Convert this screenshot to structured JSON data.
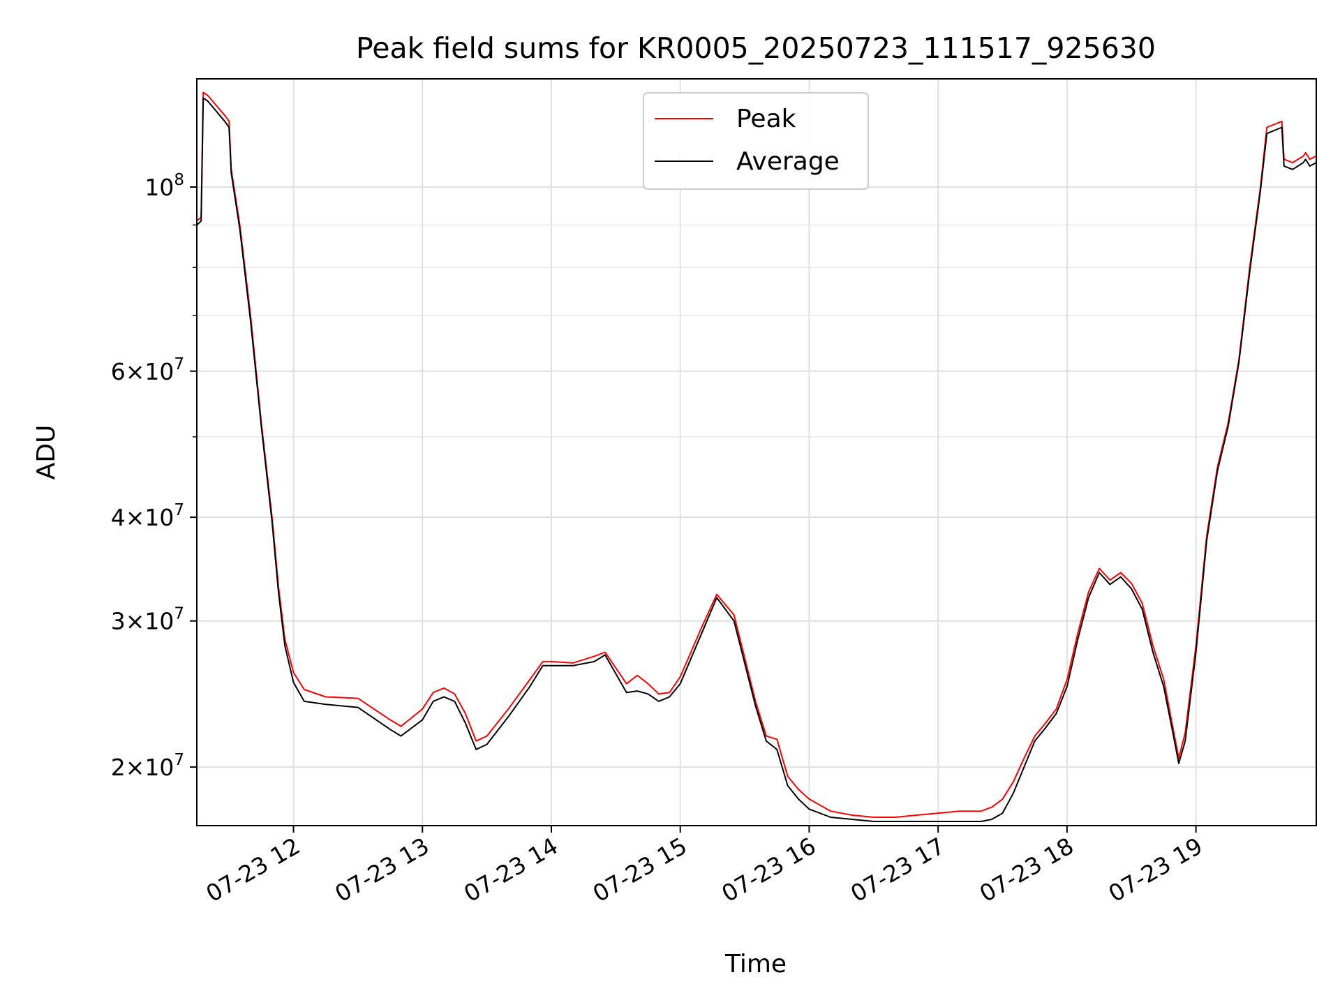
{
  "chart_data": {
    "type": "line",
    "title": "Peak field sums for KR0005_20250723_111517_925630",
    "xlabel": "Time",
    "ylabel": "ADU",
    "yscale": "log",
    "grid": true,
    "legend_position": "top-center",
    "xlim": [
      "2025-07-23 11:15",
      "2025-07-23 19:56"
    ],
    "ylim": [
      17000000,
      135000000
    ],
    "x_ticks": [
      {
        "value": "2025-07-23 12:00",
        "label": "07-23 12"
      },
      {
        "value": "2025-07-23 13:00",
        "label": "07-23 13"
      },
      {
        "value": "2025-07-23 14:00",
        "label": "07-23 14"
      },
      {
        "value": "2025-07-23 15:00",
        "label": "07-23 15"
      },
      {
        "value": "2025-07-23 16:00",
        "label": "07-23 16"
      },
      {
        "value": "2025-07-23 17:00",
        "label": "07-23 17"
      },
      {
        "value": "2025-07-23 18:00",
        "label": "07-23 18"
      },
      {
        "value": "2025-07-23 19:00",
        "label": "07-23 19"
      }
    ],
    "y_major_ticks": [
      {
        "value": 20000000,
        "mantissa": "2",
        "exponent": "7"
      },
      {
        "value": 30000000,
        "mantissa": "3",
        "exponent": "7"
      },
      {
        "value": 40000000,
        "mantissa": "4",
        "exponent": "7"
      },
      {
        "value": 60000000,
        "mantissa": "6",
        "exponent": "7"
      },
      {
        "value": 100000000,
        "mantissa": "",
        "exponent": "8"
      }
    ],
    "y_minor_ticks": [
      50000000,
      70000000,
      80000000,
      90000000
    ],
    "series": [
      {
        "name": "Peak",
        "color": "#ff0000",
        "x": [
          "2025-07-23 11:15",
          "2025-07-23 11:17",
          "2025-07-23 11:18",
          "2025-07-23 11:20",
          "2025-07-23 11:28",
          "2025-07-23 11:30",
          "2025-07-23 11:31",
          "2025-07-23 11:35",
          "2025-07-23 11:40",
          "2025-07-23 11:45",
          "2025-07-23 11:50",
          "2025-07-23 11:53",
          "2025-07-23 11:56",
          "2025-07-23 12:00",
          "2025-07-23 12:05",
          "2025-07-23 12:15",
          "2025-07-23 12:30",
          "2025-07-23 12:45",
          "2025-07-23 12:50",
          "2025-07-23 13:00",
          "2025-07-23 13:05",
          "2025-07-23 13:10",
          "2025-07-23 13:15",
          "2025-07-23 13:20",
          "2025-07-23 13:25",
          "2025-07-23 13:30",
          "2025-07-23 13:40",
          "2025-07-23 13:50",
          "2025-07-23 13:56",
          "2025-07-23 14:00",
          "2025-07-23 14:10",
          "2025-07-23 14:20",
          "2025-07-23 14:25",
          "2025-07-23 14:35",
          "2025-07-23 14:40",
          "2025-07-23 14:45",
          "2025-07-23 14:50",
          "2025-07-23 14:55",
          "2025-07-23 15:00",
          "2025-07-23 15:10",
          "2025-07-23 15:17",
          "2025-07-23 15:25",
          "2025-07-23 15:35",
          "2025-07-23 15:40",
          "2025-07-23 15:45",
          "2025-07-23 15:50",
          "2025-07-23 15:55",
          "2025-07-23 16:00",
          "2025-07-23 16:10",
          "2025-07-23 16:20",
          "2025-07-23 16:30",
          "2025-07-23 16:40",
          "2025-07-23 16:50",
          "2025-07-23 17:00",
          "2025-07-23 17:10",
          "2025-07-23 17:20",
          "2025-07-23 17:25",
          "2025-07-23 17:30",
          "2025-07-23 17:35",
          "2025-07-23 17:40",
          "2025-07-23 17:45",
          "2025-07-23 17:50",
          "2025-07-23 17:55",
          "2025-07-23 18:00",
          "2025-07-23 18:05",
          "2025-07-23 18:10",
          "2025-07-23 18:15",
          "2025-07-23 18:20",
          "2025-07-23 18:25",
          "2025-07-23 18:30",
          "2025-07-23 18:35",
          "2025-07-23 18:40",
          "2025-07-23 18:45",
          "2025-07-23 18:50",
          "2025-07-23 18:52",
          "2025-07-23 18:55",
          "2025-07-23 19:00",
          "2025-07-23 19:05",
          "2025-07-23 19:10",
          "2025-07-23 19:15",
          "2025-07-23 19:20",
          "2025-07-23 19:25",
          "2025-07-23 19:30",
          "2025-07-23 19:33",
          "2025-07-23 19:40",
          "2025-07-23 19:41",
          "2025-07-23 19:45",
          "2025-07-23 19:50",
          "2025-07-23 19:51",
          "2025-07-23 19:53",
          "2025-07-23 19:56"
        ],
        "values": [
          91000000,
          92000000,
          130000000,
          129000000,
          122000000,
          120000000,
          105000000,
          90000000,
          70000000,
          52000000,
          40000000,
          33000000,
          28500000,
          26000000,
          24800000,
          24300000,
          24200000,
          22800000,
          22400000,
          23500000,
          24600000,
          24900000,
          24500000,
          23200000,
          21500000,
          21800000,
          23500000,
          25500000,
          26800000,
          26800000,
          26700000,
          27200000,
          27500000,
          25200000,
          25800000,
          25200000,
          24500000,
          24600000,
          25700000,
          29500000,
          32300000,
          30500000,
          24000000,
          21800000,
          21600000,
          19500000,
          18800000,
          18300000,
          17700000,
          17500000,
          17400000,
          17400000,
          17500000,
          17600000,
          17700000,
          17700000,
          17900000,
          18300000,
          19200000,
          20500000,
          21800000,
          22600000,
          23500000,
          25500000,
          29000000,
          32500000,
          34700000,
          33600000,
          34300000,
          33300000,
          31500000,
          28000000,
          25500000,
          21800000,
          20500000,
          22000000,
          28000000,
          38000000,
          46000000,
          52000000,
          62000000,
          80000000,
          100000000,
          118000000,
          120000000,
          108000000,
          107000000,
          109000000,
          110000000,
          108000000,
          109000000
        ]
      },
      {
        "name": "Average",
        "color": "#000000",
        "x": [
          "2025-07-23 11:15",
          "2025-07-23 11:17",
          "2025-07-23 11:18",
          "2025-07-23 11:20",
          "2025-07-23 11:28",
          "2025-07-23 11:30",
          "2025-07-23 11:31",
          "2025-07-23 11:35",
          "2025-07-23 11:40",
          "2025-07-23 11:45",
          "2025-07-23 11:50",
          "2025-07-23 11:53",
          "2025-07-23 11:56",
          "2025-07-23 12:00",
          "2025-07-23 12:05",
          "2025-07-23 12:15",
          "2025-07-23 12:30",
          "2025-07-23 12:45",
          "2025-07-23 12:50",
          "2025-07-23 13:00",
          "2025-07-23 13:05",
          "2025-07-23 13:10",
          "2025-07-23 13:15",
          "2025-07-23 13:20",
          "2025-07-23 13:25",
          "2025-07-23 13:30",
          "2025-07-23 13:40",
          "2025-07-23 13:50",
          "2025-07-23 13:56",
          "2025-07-23 14:00",
          "2025-07-23 14:10",
          "2025-07-23 14:20",
          "2025-07-23 14:25",
          "2025-07-23 14:35",
          "2025-07-23 14:40",
          "2025-07-23 14:45",
          "2025-07-23 14:50",
          "2025-07-23 14:55",
          "2025-07-23 15:00",
          "2025-07-23 15:10",
          "2025-07-23 15:17",
          "2025-07-23 15:25",
          "2025-07-23 15:35",
          "2025-07-23 15:40",
          "2025-07-23 15:45",
          "2025-07-23 15:50",
          "2025-07-23 15:55",
          "2025-07-23 16:00",
          "2025-07-23 16:10",
          "2025-07-23 16:20",
          "2025-07-23 16:30",
          "2025-07-23 16:40",
          "2025-07-23 16:50",
          "2025-07-23 17:00",
          "2025-07-23 17:10",
          "2025-07-23 17:20",
          "2025-07-23 17:25",
          "2025-07-23 17:30",
          "2025-07-23 17:35",
          "2025-07-23 17:40",
          "2025-07-23 17:45",
          "2025-07-23 17:50",
          "2025-07-23 17:55",
          "2025-07-23 18:00",
          "2025-07-23 18:05",
          "2025-07-23 18:10",
          "2025-07-23 18:15",
          "2025-07-23 18:20",
          "2025-07-23 18:25",
          "2025-07-23 18:30",
          "2025-07-23 18:35",
          "2025-07-23 18:40",
          "2025-07-23 18:45",
          "2025-07-23 18:50",
          "2025-07-23 18:52",
          "2025-07-23 18:55",
          "2025-07-23 19:00",
          "2025-07-23 19:05",
          "2025-07-23 19:10",
          "2025-07-23 19:15",
          "2025-07-23 19:20",
          "2025-07-23 19:25",
          "2025-07-23 19:30",
          "2025-07-23 19:33",
          "2025-07-23 19:40",
          "2025-07-23 19:41",
          "2025-07-23 19:45",
          "2025-07-23 19:50",
          "2025-07-23 19:51",
          "2025-07-23 19:53",
          "2025-07-23 19:56"
        ],
        "values": [
          90000000,
          91000000,
          128000000,
          127000000,
          120000000,
          118000000,
          104000000,
          89000000,
          69000000,
          51500000,
          39500000,
          32500000,
          28000000,
          25300000,
          24000000,
          23800000,
          23600000,
          22200000,
          21800000,
          22800000,
          24000000,
          24300000,
          24000000,
          22600000,
          21000000,
          21300000,
          23000000,
          25000000,
          26500000,
          26500000,
          26500000,
          26800000,
          27300000,
          24600000,
          24700000,
          24500000,
          24000000,
          24300000,
          25200000,
          29000000,
          32000000,
          30000000,
          23700000,
          21500000,
          21000000,
          19000000,
          18300000,
          17800000,
          17400000,
          17300000,
          17200000,
          17200000,
          17200000,
          17200000,
          17200000,
          17200000,
          17300000,
          17600000,
          18600000,
          20000000,
          21500000,
          22300000,
          23200000,
          25000000,
          28500000,
          32000000,
          34300000,
          33200000,
          33900000,
          32800000,
          31000000,
          27500000,
          25000000,
          21500000,
          20200000,
          21500000,
          27500000,
          37500000,
          45500000,
          51500000,
          61500000,
          79000000,
          99000000,
          116000000,
          118000000,
          106000000,
          105000000,
          107000000,
          108000000,
          106000000,
          107000000
        ]
      }
    ]
  }
}
